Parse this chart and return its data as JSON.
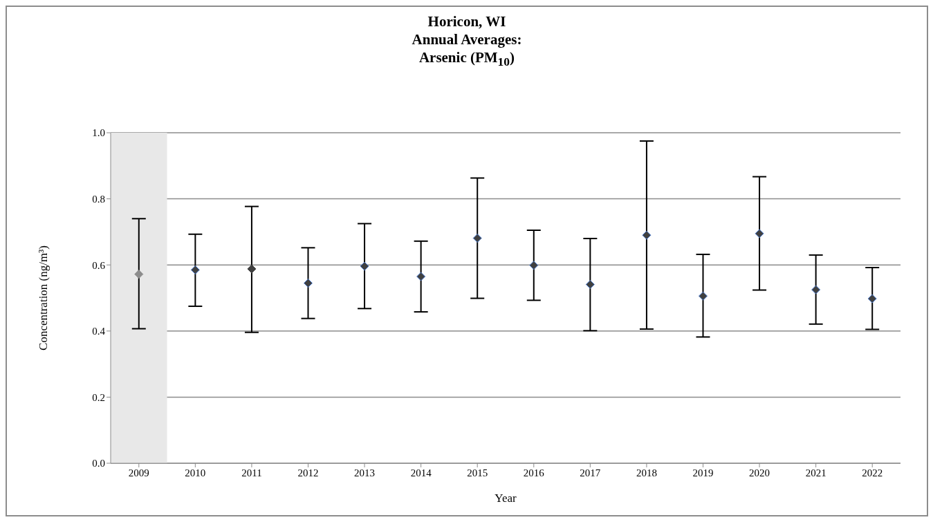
{
  "chart_data": {
    "type": "scatter",
    "title": "Horicon, WI\nAnnual Averages:\nArsenic (PM$_{10}$)",
    "xlabel": "Year",
    "ylabel": "Concentration (ng/m³)",
    "categories": [
      "2009",
      "2010",
      "2011",
      "2012",
      "2013",
      "2014",
      "2015",
      "2016",
      "2017",
      "2018",
      "2019",
      "2020",
      "2021",
      "2022"
    ],
    "values": [
      0.572,
      0.585,
      0.588,
      0.545,
      0.596,
      0.565,
      0.681,
      0.599,
      0.541,
      0.69,
      0.506,
      0.695,
      0.525,
      0.498
    ],
    "errors": [
      [
        0.407,
        0.74
      ],
      [
        0.475,
        0.693
      ],
      [
        0.396,
        0.777
      ],
      [
        0.438,
        0.652
      ],
      [
        0.468,
        0.725
      ],
      [
        0.458,
        0.672
      ],
      [
        0.499,
        0.863
      ],
      [
        0.493,
        0.705
      ],
      [
        0.401,
        0.68
      ],
      [
        0.406,
        0.975
      ],
      [
        0.382,
        0.632
      ],
      [
        0.524,
        0.867
      ],
      [
        0.421,
        0.63
      ],
      [
        0.405,
        0.592
      ]
    ],
    "colors": [
      "#8c8c8c",
      "#404040",
      "#404040",
      "#404040",
      "#404040",
      "#404040",
      "#404040",
      "#404040",
      "#404040",
      "#404040",
      "#404040",
      "#404040",
      "#404040",
      "#404040"
    ],
    "ylim": [
      0,
      1
    ],
    "yticks": [
      {
        "value": 0,
        "label": "0.0"
      },
      {
        "value": 0.2,
        "label": "0.2"
      },
      {
        "value": 0.4,
        "label": "0.4"
      },
      {
        "value": 0.6,
        "label": "0.6"
      },
      {
        "value": 0.8,
        "label": "0.8"
      },
      {
        "value": 1,
        "label": "1.0"
      }
    ],
    "bands": [
      {
        "axis": "x",
        "from": "2009",
        "to": "2009",
        "color": "#e8e8e8"
      }
    ],
    "grid": "y",
    "marker": "diamond"
  }
}
